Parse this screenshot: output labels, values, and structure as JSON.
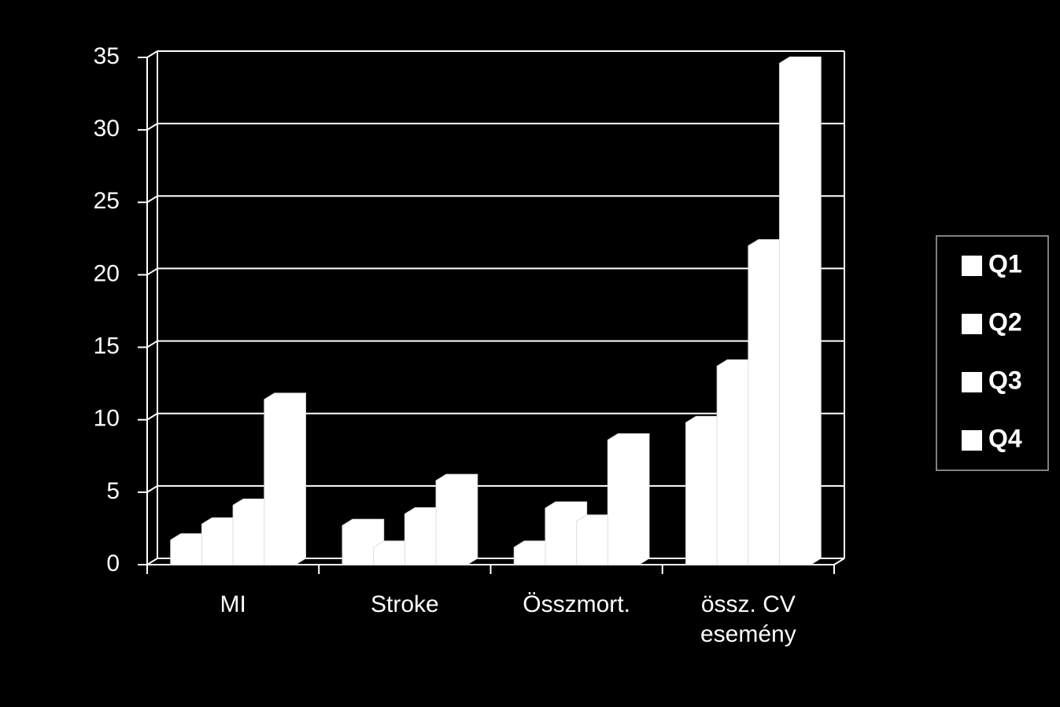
{
  "chart_data": {
    "type": "bar3d",
    "categories": [
      "MI",
      "Stroke",
      "Összmort.",
      "össz. CV esemény"
    ],
    "series": [
      {
        "name": "Q1",
        "color": "#ffffff",
        "values": [
          1.7,
          2.7,
          1.2,
          9.8
        ]
      },
      {
        "name": "Q2",
        "color": "#ffffff",
        "values": [
          2.8,
          1.2,
          3.9,
          13.7
        ]
      },
      {
        "name": "Q3",
        "color": "#ffffff",
        "values": [
          4.1,
          3.5,
          3.0,
          22.0
        ]
      },
      {
        "name": "Q4",
        "color": "#ffffff",
        "values": [
          11.4,
          5.8,
          8.6,
          34.6
        ]
      }
    ],
    "ylim": [
      0,
      35
    ],
    "yticks": [
      0,
      5,
      10,
      15,
      20,
      25,
      30,
      35
    ],
    "grid": true,
    "legend": "right"
  }
}
